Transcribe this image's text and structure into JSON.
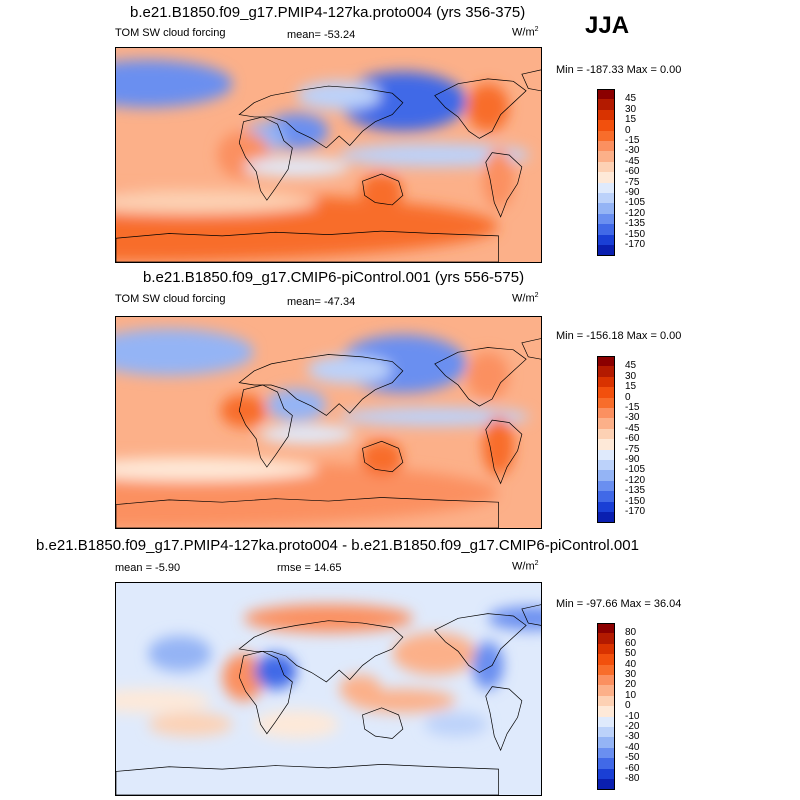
{
  "season": "JJA",
  "units": "W/m",
  "units_sup": "2",
  "chart_data": [
    {
      "type": "heatmap",
      "title": "b.e21.B1850.f09_g17.PMIP4-127ka.proto004 (yrs 356-375)",
      "left_label": "TOM SW cloud forcing",
      "stat_text": "mean= -53.24",
      "minmax_text": "Min = -187.33 Max =   0.00",
      "levels": [
        "45",
        "30",
        "15",
        "0",
        "-15",
        "-30",
        "-45",
        "-60",
        "-75",
        "-90",
        "-105",
        "-120",
        "-135",
        "-150",
        "-170"
      ],
      "colors": [
        "#8b0000",
        "#b31a00",
        "#d93300",
        "#f2500d",
        "#f86d2b",
        "#fb9060",
        "#fcb089",
        "#fdd1b4",
        "#fee9d8",
        "#dfeafc",
        "#bcd2fa",
        "#94b4f5",
        "#6a8ff0",
        "#4169e7",
        "#1a3fd5",
        "#0a1fb0"
      ]
    },
    {
      "type": "heatmap",
      "title": "b.e21.B1850.f09_g17.CMIP6-piControl.001 (yrs 556-575)",
      "left_label": "TOM SW cloud forcing",
      "stat_text": "mean= -47.34",
      "minmax_text": "Min = -156.18 Max =   0.00",
      "levels": [
        "45",
        "30",
        "15",
        "0",
        "-15",
        "-30",
        "-45",
        "-60",
        "-75",
        "-90",
        "-105",
        "-120",
        "-135",
        "-150",
        "-170"
      ],
      "colors": [
        "#8b0000",
        "#b31a00",
        "#d93300",
        "#f2500d",
        "#f86d2b",
        "#fb9060",
        "#fcb089",
        "#fdd1b4",
        "#fee9d8",
        "#dfeafc",
        "#bcd2fa",
        "#94b4f5",
        "#6a8ff0",
        "#4169e7",
        "#1a3fd5",
        "#0a1fb0"
      ]
    },
    {
      "type": "heatmap",
      "title": "b.e21.B1850.f09_g17.PMIP4-127ka.proto004 - b.e21.B1850.f09_g17.CMIP6-piControl.001",
      "left_label": "mean =  -5.90",
      "stat_text": "rmse =  14.65",
      "minmax_text": "Min = -97.66 Max =  36.04",
      "levels": [
        "80",
        "60",
        "50",
        "40",
        "30",
        "20",
        "10",
        "0",
        "-10",
        "-20",
        "-30",
        "-40",
        "-50",
        "-60",
        "-80"
      ],
      "colors": [
        "#8b0000",
        "#b31a00",
        "#d93300",
        "#f2500d",
        "#f86d2b",
        "#fb9060",
        "#fcb089",
        "#fdd1b4",
        "#fee9d8",
        "#dfeafc",
        "#bcd2fa",
        "#94b4f5",
        "#6a8ff0",
        "#4169e7",
        "#1a3fd5",
        "#0a1fb0"
      ]
    }
  ]
}
